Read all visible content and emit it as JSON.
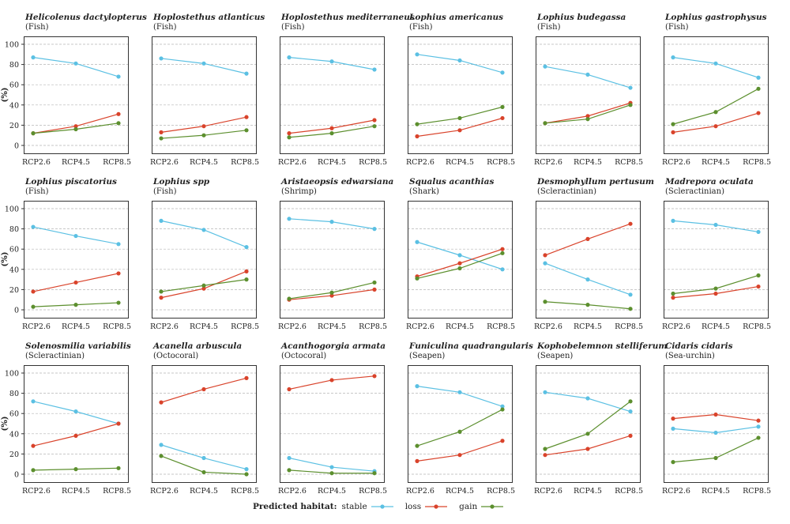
{
  "legend": {
    "title": "Predicted habitat:",
    "items": [
      {
        "label": "stable",
        "color": "#5bc0e3"
      },
      {
        "label": "loss",
        "color": "#d9432b"
      },
      {
        "label": "gain",
        "color": "#5c8f2e"
      }
    ]
  },
  "chart_data": [
    {
      "type": "line",
      "title": "Helicolenus dactylopterus",
      "subtitle": "(Fish)",
      "ylabel": "(%)",
      "categories": [
        "RCP2.6",
        "RCP4.5",
        "RCP8.5"
      ],
      "ylim": [
        0,
        100
      ],
      "yticks": [
        0,
        20,
        40,
        60,
        80,
        100
      ],
      "series": [
        {
          "name": "stable",
          "values": [
            87,
            81,
            68
          ]
        },
        {
          "name": "loss",
          "values": [
            12,
            19,
            31
          ]
        },
        {
          "name": "gain",
          "values": [
            12,
            16,
            22
          ]
        }
      ]
    },
    {
      "type": "line",
      "title": "Hoplostethus atlanticus",
      "subtitle": "(Fish)",
      "categories": [
        "RCP2.6",
        "RCP4.5",
        "RCP8.5"
      ],
      "ylim": [
        0,
        100
      ],
      "series": [
        {
          "name": "stable",
          "values": [
            86,
            81,
            71
          ]
        },
        {
          "name": "loss",
          "values": [
            13,
            19,
            28
          ]
        },
        {
          "name": "gain",
          "values": [
            7,
            10,
            15
          ]
        }
      ]
    },
    {
      "type": "line",
      "title": "Hoplostethus mediterraneus",
      "subtitle": "(Fish)",
      "categories": [
        "RCP2.6",
        "RCP4.5",
        "RCP8.5"
      ],
      "ylim": [
        0,
        100
      ],
      "series": [
        {
          "name": "stable",
          "values": [
            87,
            83,
            75
          ]
        },
        {
          "name": "loss",
          "values": [
            12,
            17,
            25
          ]
        },
        {
          "name": "gain",
          "values": [
            8,
            12,
            19
          ]
        }
      ]
    },
    {
      "type": "line",
      "title": "Lophius americanus",
      "subtitle": "(Fish)",
      "categories": [
        "RCP2.6",
        "RCP4.5",
        "RCP8.5"
      ],
      "ylim": [
        0,
        100
      ],
      "series": [
        {
          "name": "stable",
          "values": [
            90,
            84,
            72
          ]
        },
        {
          "name": "loss",
          "values": [
            9,
            15,
            27
          ]
        },
        {
          "name": "gain",
          "values": [
            21,
            27,
            38
          ]
        }
      ]
    },
    {
      "type": "line",
      "title": "Lophius budegassa",
      "subtitle": "(Fish)",
      "categories": [
        "RCP2.6",
        "RCP4.5",
        "RCP8.5"
      ],
      "ylim": [
        0,
        100
      ],
      "series": [
        {
          "name": "stable",
          "values": [
            78,
            70,
            57
          ]
        },
        {
          "name": "loss",
          "values": [
            22,
            29,
            42
          ]
        },
        {
          "name": "gain",
          "values": [
            22,
            26,
            40
          ]
        }
      ]
    },
    {
      "type": "line",
      "title": "Lophius gastrophysus",
      "subtitle": "(Fish)",
      "categories": [
        "RCP2.6",
        "RCP4.5",
        "RCP8.5"
      ],
      "ylim": [
        0,
        100
      ],
      "series": [
        {
          "name": "stable",
          "values": [
            87,
            81,
            67
          ]
        },
        {
          "name": "loss",
          "values": [
            13,
            19,
            32
          ]
        },
        {
          "name": "gain",
          "values": [
            21,
            33,
            56
          ]
        }
      ]
    },
    {
      "type": "line",
      "title": "Lophius piscatorius",
      "subtitle": "(Fish)",
      "ylabel": "(%)",
      "categories": [
        "RCP2.6",
        "RCP4.5",
        "RCP8.5"
      ],
      "ylim": [
        0,
        100
      ],
      "yticks": [
        0,
        20,
        40,
        60,
        80,
        100
      ],
      "series": [
        {
          "name": "stable",
          "values": [
            82,
            73,
            65
          ]
        },
        {
          "name": "loss",
          "values": [
            18,
            27,
            36
          ]
        },
        {
          "name": "gain",
          "values": [
            3,
            5,
            7
          ]
        }
      ]
    },
    {
      "type": "line",
      "title": "Lophius spp",
      "subtitle": "(Fish)",
      "categories": [
        "RCP2.6",
        "RCP4.5",
        "RCP8.5"
      ],
      "ylim": [
        0,
        100
      ],
      "series": [
        {
          "name": "stable",
          "values": [
            88,
            79,
            62
          ]
        },
        {
          "name": "loss",
          "values": [
            12,
            21,
            38
          ]
        },
        {
          "name": "gain",
          "values": [
            18,
            24,
            30
          ]
        }
      ]
    },
    {
      "type": "line",
      "title": "Aristaeopsis edwarsiana",
      "subtitle": "(Shrimp)",
      "categories": [
        "RCP2.6",
        "RCP4.5",
        "RCP8.5"
      ],
      "ylim": [
        0,
        100
      ],
      "series": [
        {
          "name": "stable",
          "values": [
            90,
            87,
            80
          ]
        },
        {
          "name": "loss",
          "values": [
            10,
            14,
            20
          ]
        },
        {
          "name": "gain",
          "values": [
            11,
            17,
            27
          ]
        }
      ]
    },
    {
      "type": "line",
      "title": "Squalus acanthias",
      "subtitle": "(Shark)",
      "categories": [
        "RCP2.6",
        "RCP4.5",
        "RCP8.5"
      ],
      "ylim": [
        0,
        100
      ],
      "series": [
        {
          "name": "stable",
          "values": [
            67,
            54,
            40
          ]
        },
        {
          "name": "loss",
          "values": [
            33,
            46,
            60
          ]
        },
        {
          "name": "gain",
          "values": [
            31,
            41,
            56
          ]
        }
      ]
    },
    {
      "type": "line",
      "title": "Desmophyllum pertusum",
      "subtitle": "(Scleractinian)",
      "categories": [
        "RCP2.6",
        "RCP4.5",
        "RCP8.5"
      ],
      "ylim": [
        0,
        100
      ],
      "series": [
        {
          "name": "stable",
          "values": [
            46,
            30,
            15
          ]
        },
        {
          "name": "loss",
          "values": [
            54,
            70,
            85
          ]
        },
        {
          "name": "gain",
          "values": [
            8,
            5,
            1
          ]
        }
      ]
    },
    {
      "type": "line",
      "title": "Madrepora oculata",
      "subtitle": "(Scleractinian)",
      "categories": [
        "RCP2.6",
        "RCP4.5",
        "RCP8.5"
      ],
      "ylim": [
        0,
        100
      ],
      "series": [
        {
          "name": "stable",
          "values": [
            88,
            84,
            77
          ]
        },
        {
          "name": "loss",
          "values": [
            12,
            16,
            23
          ]
        },
        {
          "name": "gain",
          "values": [
            16,
            21,
            34
          ]
        }
      ]
    },
    {
      "type": "line",
      "title": "Solenosmilia variabilis",
      "subtitle": "(Scleractinian)",
      "ylabel": "(%)",
      "categories": [
        "RCP2.6",
        "RCP4.5",
        "RCP8.5"
      ],
      "ylim": [
        0,
        100
      ],
      "yticks": [
        0,
        20,
        40,
        60,
        80,
        100
      ],
      "series": [
        {
          "name": "stable",
          "values": [
            72,
            62,
            50
          ]
        },
        {
          "name": "loss",
          "values": [
            28,
            38,
            50
          ]
        },
        {
          "name": "gain",
          "values": [
            4,
            5,
            6
          ]
        }
      ]
    },
    {
      "type": "line",
      "title": "Acanella arbuscula",
      "subtitle": "(Octocoral)",
      "categories": [
        "RCP2.6",
        "RCP4.5",
        "RCP8.5"
      ],
      "ylim": [
        0,
        100
      ],
      "series": [
        {
          "name": "stable",
          "values": [
            29,
            16,
            5
          ]
        },
        {
          "name": "loss",
          "values": [
            71,
            84,
            95
          ]
        },
        {
          "name": "gain",
          "values": [
            18,
            2,
            0
          ]
        }
      ]
    },
    {
      "type": "line",
      "title": "Acanthogorgia armata",
      "subtitle": "(Octocoral)",
      "categories": [
        "RCP2.6",
        "RCP4.5",
        "RCP8.5"
      ],
      "ylim": [
        0,
        100
      ],
      "series": [
        {
          "name": "stable",
          "values": [
            16,
            7,
            3
          ]
        },
        {
          "name": "loss",
          "values": [
            84,
            93,
            97
          ]
        },
        {
          "name": "gain",
          "values": [
            4,
            1,
            1
          ]
        }
      ]
    },
    {
      "type": "line",
      "title": "Funiculina quadrangularis",
      "subtitle": "(Seapen)",
      "categories": [
        "RCP2.6",
        "RCP4.5",
        "RCP8.5"
      ],
      "ylim": [
        0,
        100
      ],
      "series": [
        {
          "name": "stable",
          "values": [
            87,
            81,
            67
          ]
        },
        {
          "name": "loss",
          "values": [
            13,
            19,
            33
          ]
        },
        {
          "name": "gain",
          "values": [
            28,
            42,
            64
          ]
        }
      ]
    },
    {
      "type": "line",
      "title": "Kophobelemnon stelliferum",
      "subtitle": "(Seapen)",
      "categories": [
        "RCP2.6",
        "RCP4.5",
        "RCP8.5"
      ],
      "ylim": [
        0,
        100
      ],
      "series": [
        {
          "name": "stable",
          "values": [
            81,
            75,
            62
          ]
        },
        {
          "name": "loss",
          "values": [
            19,
            25,
            38
          ]
        },
        {
          "name": "gain",
          "values": [
            25,
            40,
            72
          ]
        }
      ]
    },
    {
      "type": "line",
      "title": "Cidaris cidaris",
      "subtitle": "(Sea-urchin)",
      "categories": [
        "RCP2.6",
        "RCP4.5",
        "RCP8.5"
      ],
      "ylim": [
        0,
        100
      ],
      "series": [
        {
          "name": "stable",
          "values": [
            45,
            41,
            47
          ]
        },
        {
          "name": "loss",
          "values": [
            55,
            59,
            53
          ]
        },
        {
          "name": "gain",
          "values": [
            12,
            16,
            36
          ]
        }
      ]
    }
  ]
}
